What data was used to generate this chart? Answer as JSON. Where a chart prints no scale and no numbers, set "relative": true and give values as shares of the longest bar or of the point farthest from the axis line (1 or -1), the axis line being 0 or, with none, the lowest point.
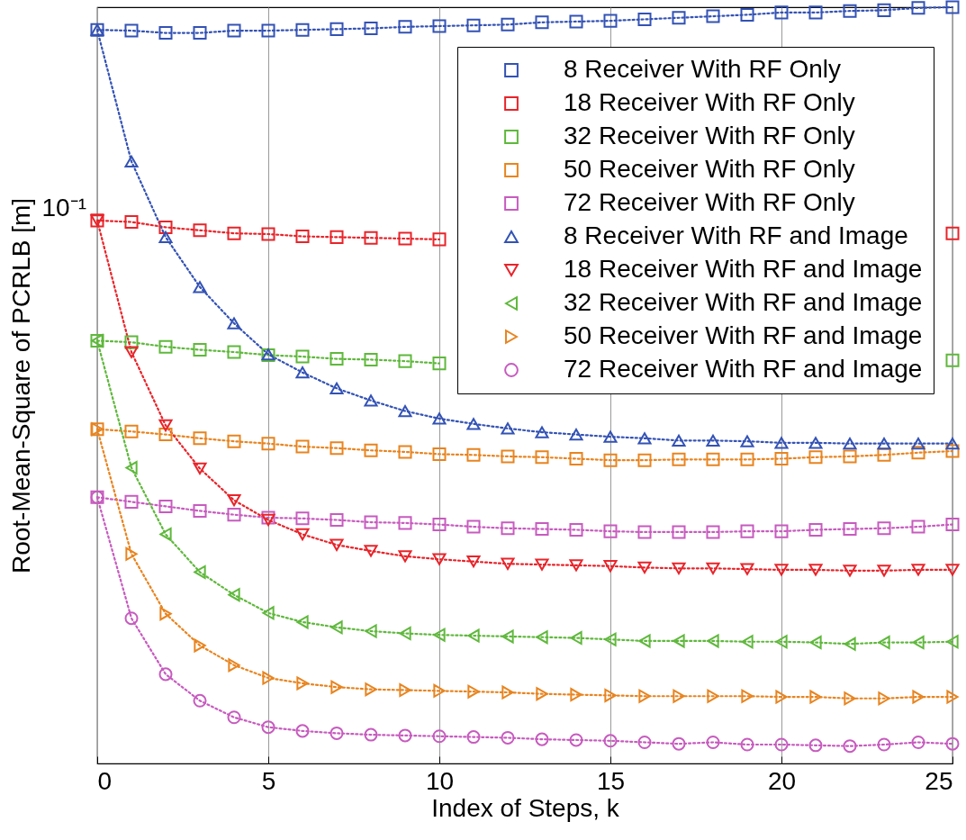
{
  "chart_data": {
    "type": "line",
    "xlabel": "Index of Steps, k",
    "ylabel": "Root-Mean-Square of PCRLB [m]",
    "x": [
      0,
      1,
      2,
      3,
      4,
      5,
      6,
      7,
      8,
      9,
      10,
      11,
      12,
      13,
      14,
      15,
      16,
      17,
      18,
      19,
      20,
      21,
      22,
      23,
      24,
      25
    ],
    "xlim": [
      0,
      25
    ],
    "xticks": [
      0,
      5,
      10,
      15,
      20,
      25
    ],
    "relative": true,
    "annotations": [
      "10⁻¹"
    ],
    "grid": "x",
    "legend": "top right",
    "line_style": "dotted",
    "series": [
      {
        "name": "8 Receiver With RF Only",
        "color": "#3352b5",
        "marker": "square",
        "values": [
          0.97,
          0.969,
          0.966,
          0.966,
          0.969,
          0.969,
          0.97,
          0.971,
          0.972,
          0.974,
          0.975,
          0.976,
          0.977,
          0.98,
          0.981,
          0.982,
          0.984,
          0.986,
          0.988,
          0.99,
          0.993,
          0.993,
          0.995,
          0.996,
          0.999,
          1
        ]
      },
      {
        "name": "18 Receiver With RF Only",
        "color": "#e8242a",
        "marker": "square",
        "values": [
          0.718,
          0.716,
          0.709,
          0.705,
          0.701,
          0.7,
          0.697,
          0.696,
          0.695,
          0.694,
          0.693,
          null,
          null,
          null,
          null,
          null,
          null,
          null,
          null,
          null,
          null,
          null,
          null,
          null,
          null,
          0.701
        ]
      },
      {
        "name": "32 Receiver With RF Only",
        "color": "#5fb83c",
        "marker": "square",
        "values": [
          0.559,
          0.557,
          0.551,
          0.547,
          0.544,
          0.54,
          0.538,
          0.535,
          0.534,
          0.532,
          0.529,
          null,
          null,
          null,
          null,
          null,
          null,
          null,
          null,
          null,
          null,
          null,
          null,
          null,
          null,
          0.533
        ]
      },
      {
        "name": "50 Receiver With RF Only",
        "color": "#e8841f",
        "marker": "square",
        "values": [
          0.442,
          0.439,
          0.435,
          0.43,
          0.426,
          0.423,
          0.419,
          0.417,
          0.414,
          0.412,
          0.409,
          0.408,
          0.406,
          0.405,
          0.403,
          0.401,
          0.401,
          0.402,
          0.402,
          0.402,
          0.403,
          0.405,
          0.406,
          0.408,
          0.411,
          0.413
        ]
      },
      {
        "name": "72 Receiver With RF Only",
        "color": "#c75bbf",
        "marker": "square",
        "values": [
          0.352,
          0.346,
          0.34,
          0.334,
          0.329,
          0.325,
          0.324,
          0.322,
          0.319,
          0.318,
          0.316,
          0.313,
          0.311,
          0.31,
          0.309,
          0.307,
          0.306,
          0.306,
          0.306,
          0.307,
          0.307,
          0.309,
          0.31,
          0.311,
          0.313,
          0.316
        ]
      },
      {
        "name": "8 Receiver With RF and Image",
        "color": "#3352b5",
        "marker": "triangle-up",
        "values": [
          0.97,
          0.796,
          0.696,
          0.63,
          0.582,
          0.541,
          0.517,
          0.496,
          0.48,
          0.466,
          0.456,
          0.449,
          0.443,
          0.438,
          0.435,
          0.432,
          0.43,
          0.427,
          0.427,
          0.426,
          0.424,
          0.424,
          0.423,
          0.423,
          0.423,
          0.423
        ]
      },
      {
        "name": "18 Receiver With RF and Image",
        "color": "#e8242a",
        "marker": "triangle-down",
        "values": [
          0.718,
          0.544,
          0.447,
          0.39,
          0.348,
          0.322,
          0.303,
          0.289,
          0.281,
          0.274,
          0.27,
          0.267,
          0.264,
          0.263,
          0.262,
          0.261,
          0.259,
          0.258,
          0.258,
          0.257,
          0.256,
          0.256,
          0.255,
          0.255,
          0.256,
          0.256
        ]
      },
      {
        "name": "32 Receiver With RF and Image",
        "color": "#5fb83c",
        "marker": "triangle-left",
        "values": [
          0.559,
          0.391,
          0.303,
          0.253,
          0.223,
          0.199,
          0.187,
          0.18,
          0.175,
          0.172,
          0.17,
          0.169,
          0.168,
          0.167,
          0.166,
          0.164,
          0.162,
          0.162,
          0.162,
          0.161,
          0.161,
          0.16,
          0.158,
          0.16,
          0.16,
          0.161
        ]
      },
      {
        "name": "50 Receiver With RF and Image",
        "color": "#e8841f",
        "marker": "triangle-right",
        "values": [
          0.442,
          0.277,
          0.198,
          0.156,
          0.13,
          0.113,
          0.106,
          0.101,
          0.098,
          0.097,
          0.096,
          0.095,
          0.094,
          0.092,
          0.091,
          0.09,
          0.089,
          0.089,
          0.089,
          0.089,
          0.088,
          0.088,
          0.086,
          0.086,
          0.088,
          0.088
        ]
      },
      {
        "name": "72 Receiver With RF and Image",
        "color": "#c75bbf",
        "marker": "circle",
        "values": [
          0.352,
          0.192,
          0.118,
          0.083,
          0.061,
          0.048,
          0.043,
          0.04,
          0.038,
          0.037,
          0.036,
          0.035,
          0.034,
          0.032,
          0.031,
          0.03,
          0.028,
          0.026,
          0.028,
          0.025,
          0.025,
          0.024,
          0.023,
          0.025,
          0.028,
          0.026
        ]
      }
    ]
  }
}
